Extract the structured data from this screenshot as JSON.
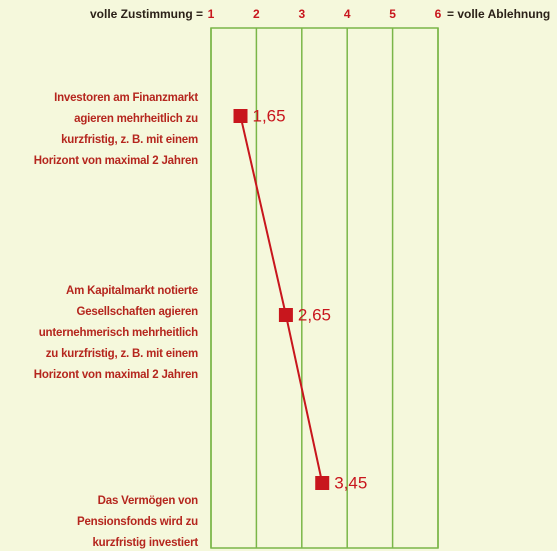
{
  "chart_data": {
    "type": "line",
    "x_label_left": "volle Zustimmung =",
    "x_label_right": "= volle Ablehnung",
    "categories": [
      "Investoren am Finanzmarkt\nagieren mehrheitlich zu\nkurzfristig, z. B. mit einem\nHorizont von maximal 2 Jahren",
      "Am Kapitalmarkt notierte\nGesellschaften agieren\nunternehmerisch mehrheitlich\nzu kurzfristig, z. B. mit einem\nHorizont von maximal 2 Jahren",
      "Das Vermögen von\nPensionsfonds wird zu\nkurzfristig investiert"
    ],
    "values": [
      1.65,
      2.65,
      3.45
    ],
    "value_labels": [
      "1,65",
      "2,65",
      "3,45"
    ],
    "color": "#c8161d",
    "xlim": [
      1,
      6
    ],
    "xticks": [
      1,
      2,
      3,
      4,
      5,
      6
    ],
    "grid": true
  }
}
